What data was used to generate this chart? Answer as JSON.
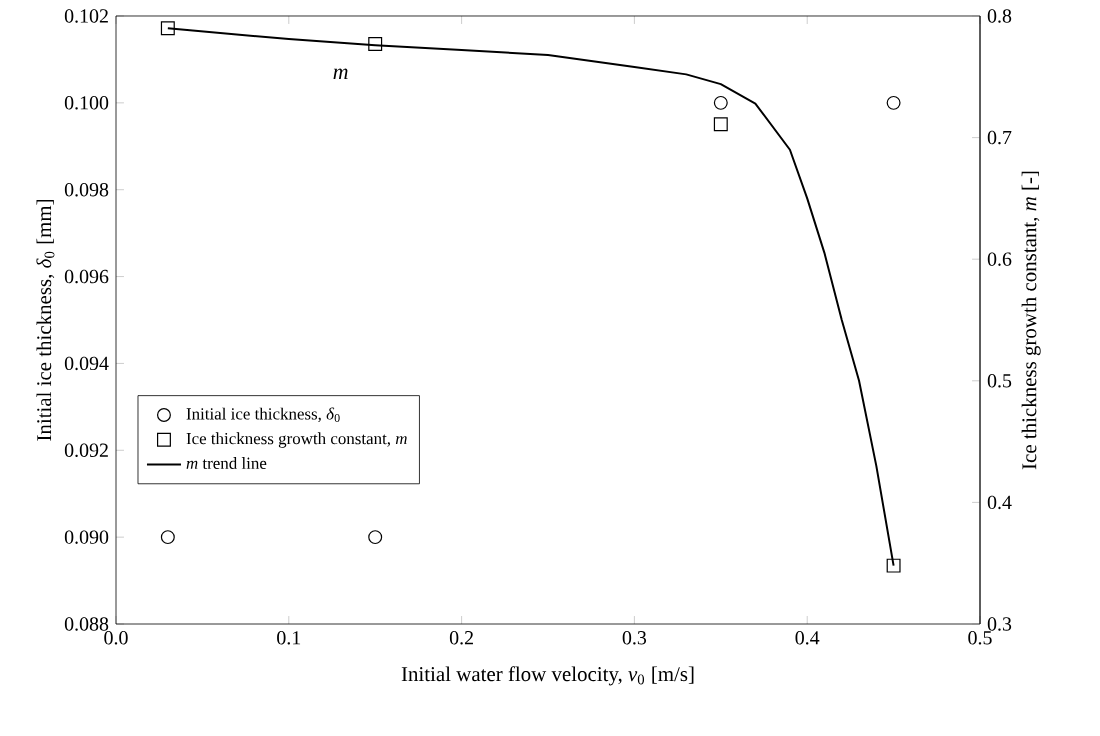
{
  "chart_data": {
    "type": "scatter",
    "xlabel": "Initial water flow velocity, *v*$_{0}$ [m/s]",
    "ylabel": "Initial ice thickness, *δ*$_{0}$ [mm]",
    "y2label": "Ice thickness growth constant, *m* [-]",
    "xlim": [
      0,
      0.5
    ],
    "xticks": [
      {
        "value": 0,
        "label": "0.0"
      },
      0.1,
      0.2,
      0.3,
      0.4,
      0.5
    ],
    "ylim": [
      0.088,
      0.102
    ],
    "yticks": [
      0.088,
      {
        "value": 0.09,
        "label": "0.090"
      },
      0.092,
      0.094,
      0.096,
      0.098,
      {
        "value": 0.1,
        "label": "0.100"
      },
      0.102
    ],
    "y2lim": [
      0.3,
      0.8
    ],
    "y2ticks": [
      0.3,
      0.4,
      0.5,
      0.6,
      0.7,
      0.8
    ],
    "legend": "left",
    "annotations": [
      "m"
    ],
    "series": [
      {
        "name": "Initial ice thickness, *δ*$_{0}$",
        "marker": "circle",
        "color": "#000000",
        "x": [
          0.03,
          0.15,
          0.35,
          0.45
        ],
        "values": [
          0.09,
          0.09,
          0.1,
          0.1
        ]
      },
      {
        "name": "Ice thickness growth constant, *m*",
        "marker": "square",
        "axis": "y2",
        "color": "#000000",
        "x": [
          0.03,
          0.15,
          0.35,
          0.45
        ],
        "values": [
          0.79,
          0.777,
          0.711,
          0.348
        ]
      },
      {
        "name": "*m* trend line",
        "type": "line",
        "marker": "none",
        "axis": "y2",
        "color": "#000000",
        "x": [
          0.03,
          0.1,
          0.15,
          0.2,
          0.25,
          0.3,
          0.33,
          0.35,
          0.37,
          0.39,
          0.4,
          0.41,
          0.42,
          0.43,
          0.44,
          0.45
        ],
        "values": [
          0.79,
          0.781,
          0.776,
          0.772,
          0.768,
          0.758,
          0.752,
          0.744,
          0.728,
          0.69,
          0.65,
          0.605,
          0.55,
          0.5,
          0.43,
          0.348
        ]
      }
    ]
  }
}
